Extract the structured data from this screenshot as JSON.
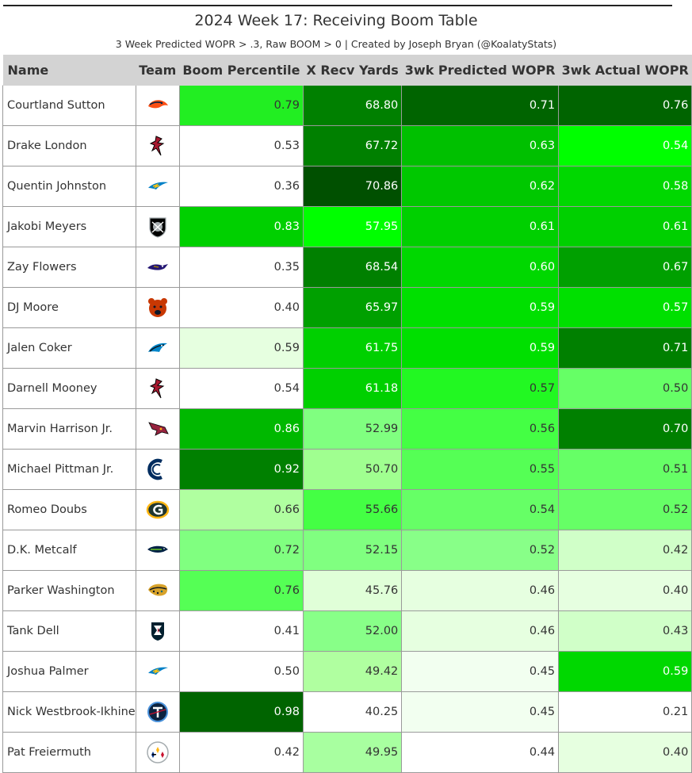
{
  "title": "2024 Week 17: Receiving Boom Table",
  "subtitle": "3 Week Predicted WOPR > .3, Raw BOOM > 0 | Created by Joseph Bryan (@KoalatyStats)",
  "columns": [
    "Name",
    "Team",
    "Boom Percentile",
    "X Recv Yards",
    "3wk Predicted WOPR",
    "3wk Actual WOPR"
  ],
  "rows": [
    {
      "name": "Courtland Sutton",
      "team_icon": "broncos-logo-icon",
      "boom": "0.79",
      "xyards": "68.80",
      "pred": "0.71",
      "actual": "0.76",
      "colors": {
        "boom": "#22ee22",
        "xyards": "#008000",
        "pred": "#006400",
        "actual": "#006400"
      }
    },
    {
      "name": "Drake London",
      "team_icon": "falcons-logo-icon",
      "boom": "0.53",
      "xyards": "67.72",
      "pred": "0.63",
      "actual": "0.54",
      "colors": {
        "boom": "#ffffff",
        "xyards": "#008000",
        "pred": "#00c000",
        "actual": "#00ff00"
      }
    },
    {
      "name": "Quentin Johnston",
      "team_icon": "chargers-logo-icon",
      "boom": "0.36",
      "xyards": "70.86",
      "pred": "0.62",
      "actual": "0.58",
      "colors": {
        "boom": "#ffffff",
        "xyards": "#005000",
        "pred": "#00c800",
        "actual": "#00d800"
      }
    },
    {
      "name": "Jakobi Meyers",
      "team_icon": "raiders-logo-icon",
      "boom": "0.83",
      "xyards": "57.95",
      "pred": "0.61",
      "actual": "0.61",
      "colors": {
        "boom": "#00d000",
        "xyards": "#00ff00",
        "pred": "#00d000",
        "actual": "#00d000"
      }
    },
    {
      "name": "Zay Flowers",
      "team_icon": "ravens-logo-icon",
      "boom": "0.35",
      "xyards": "68.54",
      "pred": "0.60",
      "actual": "0.67",
      "colors": {
        "boom": "#ffffff",
        "xyards": "#008000",
        "pred": "#00d800",
        "actual": "#00a000"
      }
    },
    {
      "name": "DJ Moore",
      "team_icon": "bears-logo-icon",
      "boom": "0.40",
      "xyards": "65.97",
      "pred": "0.59",
      "actual": "0.57",
      "colors": {
        "boom": "#ffffff",
        "xyards": "#00a000",
        "pred": "#00e000",
        "actual": "#00e000"
      }
    },
    {
      "name": "Jalen Coker",
      "team_icon": "panthers-logo-icon",
      "boom": "0.59",
      "xyards": "61.75",
      "pred": "0.59",
      "actual": "0.71",
      "colors": {
        "boom": "#e6ffe0",
        "xyards": "#00d000",
        "pred": "#00e000",
        "actual": "#008000"
      }
    },
    {
      "name": "Darnell Mooney",
      "team_icon": "falcons-logo-icon",
      "boom": "0.54",
      "xyards": "61.18",
      "pred": "0.57",
      "actual": "0.50",
      "colors": {
        "boom": "#ffffff",
        "xyards": "#00d000",
        "pred": "#22f822",
        "actual": "#66ff66"
      }
    },
    {
      "name": "Marvin Harrison Jr.",
      "team_icon": "cardinals-logo-icon",
      "boom": "0.86",
      "xyards": "52.99",
      "pred": "0.56",
      "actual": "0.70",
      "colors": {
        "boom": "#00b800",
        "xyards": "#80ff80",
        "pred": "#44ff44",
        "actual": "#008000"
      }
    },
    {
      "name": "Michael Pittman Jr.",
      "team_icon": "colts-logo-icon",
      "boom": "0.92",
      "xyards": "50.70",
      "pred": "0.55",
      "actual": "0.51",
      "colors": {
        "boom": "#008000",
        "xyards": "#a0ff90",
        "pred": "#55ff55",
        "actual": "#66ff66"
      }
    },
    {
      "name": "Romeo Doubs",
      "team_icon": "packers-logo-icon",
      "boom": "0.66",
      "xyards": "55.66",
      "pred": "0.54",
      "actual": "0.52",
      "colors": {
        "boom": "#b0ffa0",
        "xyards": "#44ff44",
        "pred": "#66ff66",
        "actual": "#66ff66"
      }
    },
    {
      "name": "D.K. Metcalf",
      "team_icon": "seahawks-logo-icon",
      "boom": "0.72",
      "xyards": "52.15",
      "pred": "0.52",
      "actual": "0.42",
      "colors": {
        "boom": "#80ff80",
        "xyards": "#80ff80",
        "pred": "#88ff88",
        "actual": "#d0ffc8"
      }
    },
    {
      "name": "Parker Washington",
      "team_icon": "jaguars-logo-icon",
      "boom": "0.76",
      "xyards": "45.76",
      "pred": "0.46",
      "actual": "0.40",
      "colors": {
        "boom": "#55ff55",
        "xyards": "#e0ffd8",
        "pred": "#e6ffe0",
        "actual": "#e6ffe0"
      }
    },
    {
      "name": "Tank Dell",
      "team_icon": "texans-logo-icon",
      "boom": "0.41",
      "xyards": "52.00",
      "pred": "0.46",
      "actual": "0.43",
      "colors": {
        "boom": "#ffffff",
        "xyards": "#88ff88",
        "pred": "#e6ffe0",
        "actual": "#d0ffc8"
      }
    },
    {
      "name": "Joshua Palmer",
      "team_icon": "chargers-logo-icon",
      "boom": "0.50",
      "xyards": "49.42",
      "pred": "0.45",
      "actual": "0.59",
      "colors": {
        "boom": "#ffffff",
        "xyards": "#b0ffa0",
        "pred": "#f2fff0",
        "actual": "#00d800"
      }
    },
    {
      "name": "Nick Westbrook-Ikhine",
      "team_icon": "titans-logo-icon",
      "boom": "0.98",
      "xyards": "40.25",
      "pred": "0.45",
      "actual": "0.21",
      "colors": {
        "boom": "#006400",
        "xyards": "#ffffff",
        "pred": "#f2fff0",
        "actual": "#ffffff"
      }
    },
    {
      "name": "Pat Freiermuth",
      "team_icon": "steelers-logo-icon",
      "boom": "0.42",
      "xyards": "49.95",
      "pred": "0.44",
      "actual": "0.40",
      "colors": {
        "boom": "#ffffff",
        "xyards": "#a8ffa0",
        "pred": "#ffffff",
        "actual": "#e6ffe0"
      }
    }
  ]
}
